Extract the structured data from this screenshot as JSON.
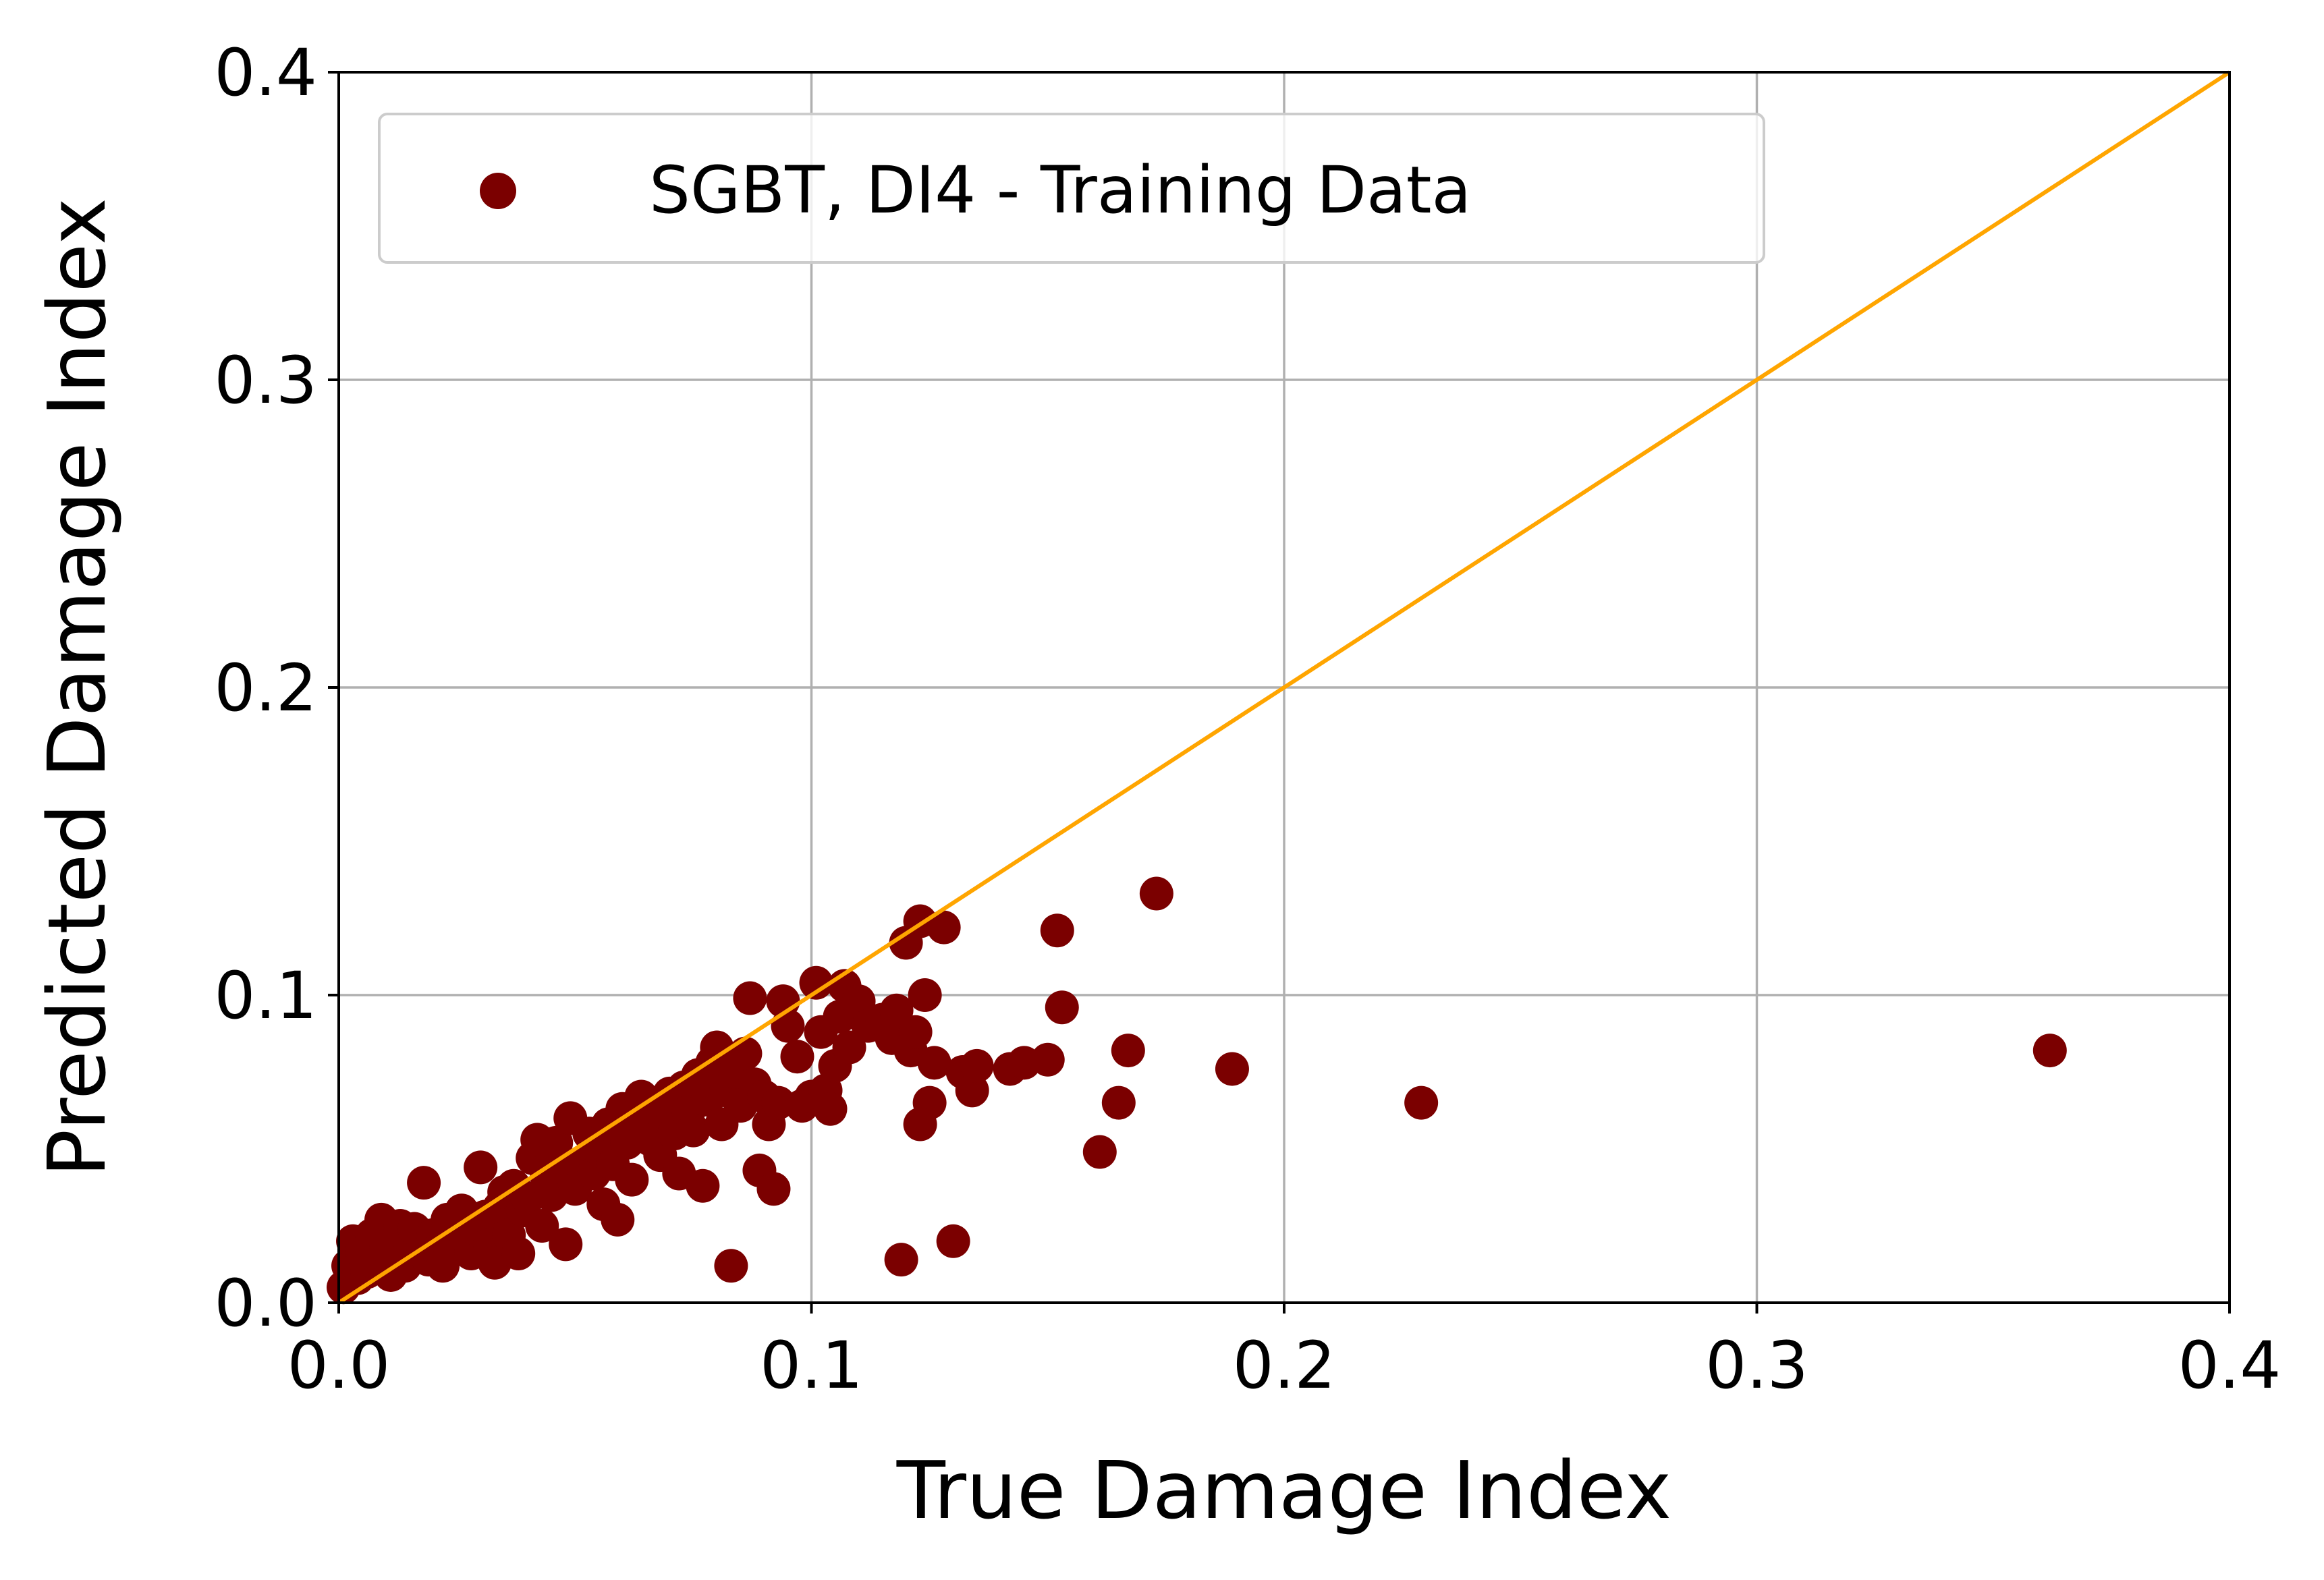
{
  "chart_data": {
    "type": "scatter",
    "xlabel": "True Damage Index",
    "ylabel": "Predicted Damage Index",
    "xlim": [
      0.0,
      0.4
    ],
    "ylim": [
      0.0,
      0.4
    ],
    "xticks": [
      "0.0",
      "0.1",
      "0.2",
      "0.3",
      "0.4"
    ],
    "yticks": [
      "0.0",
      "0.1",
      "0.2",
      "0.3",
      "0.4"
    ],
    "grid": true,
    "legend_position": "upper-left",
    "series": [
      {
        "name": "SGBT, DI4 - Training Data",
        "color": "#7b0000",
        "marker": "circle",
        "points": [
          [
            0.001,
            0.005
          ],
          [
            0.002,
            0.012
          ],
          [
            0.003,
            0.02
          ],
          [
            0.004,
            0.008
          ],
          [
            0.005,
            0.017
          ],
          [
            0.006,
            0.01
          ],
          [
            0.007,
            0.022
          ],
          [
            0.008,
            0.013
          ],
          [
            0.009,
            0.027
          ],
          [
            0.01,
            0.018
          ],
          [
            0.011,
            0.009
          ],
          [
            0.012,
            0.016
          ],
          [
            0.013,
            0.025
          ],
          [
            0.014,
            0.012
          ],
          [
            0.015,
            0.02
          ],
          [
            0.016,
            0.024
          ],
          [
            0.018,
            0.039
          ],
          [
            0.019,
            0.014
          ],
          [
            0.02,
            0.022
          ],
          [
            0.021,
            0.017
          ],
          [
            0.022,
            0.012
          ],
          [
            0.023,
            0.027
          ],
          [
            0.024,
            0.019
          ],
          [
            0.025,
            0.025
          ],
          [
            0.026,
            0.03
          ],
          [
            0.027,
            0.021
          ],
          [
            0.028,
            0.016
          ],
          [
            0.029,
            0.024
          ],
          [
            0.03,
            0.044
          ],
          [
            0.031,
            0.028
          ],
          [
            0.032,
            0.019
          ],
          [
            0.033,
            0.013
          ],
          [
            0.034,
            0.031
          ],
          [
            0.035,
            0.036
          ],
          [
            0.036,
            0.022
          ],
          [
            0.037,
            0.038
          ],
          [
            0.038,
            0.016
          ],
          [
            0.039,
            0.03
          ],
          [
            0.04,
            0.034
          ],
          [
            0.041,
            0.047
          ],
          [
            0.042,
            0.053
          ],
          [
            0.043,
            0.025
          ],
          [
            0.044,
            0.041
          ],
          [
            0.045,
            0.035
          ],
          [
            0.046,
            0.052
          ],
          [
            0.047,
            0.044
          ],
          [
            0.048,
            0.019
          ],
          [
            0.049,
            0.06
          ],
          [
            0.05,
            0.037
          ],
          [
            0.052,
            0.046
          ],
          [
            0.053,
            0.055
          ],
          [
            0.054,
            0.042
          ],
          [
            0.055,
            0.05
          ],
          [
            0.056,
            0.032
          ],
          [
            0.057,
            0.058
          ],
          [
            0.058,
            0.045
          ],
          [
            0.059,
            0.027
          ],
          [
            0.06,
            0.063
          ],
          [
            0.061,
            0.052
          ],
          [
            0.062,
            0.04
          ],
          [
            0.063,
            0.061
          ],
          [
            0.064,
            0.067
          ],
          [
            0.065,
            0.057
          ],
          [
            0.066,
            0.053
          ],
          [
            0.067,
            0.064
          ],
          [
            0.068,
            0.048
          ],
          [
            0.069,
            0.06
          ],
          [
            0.07,
            0.068
          ],
          [
            0.071,
            0.055
          ],
          [
            0.072,
            0.042
          ],
          [
            0.073,
            0.07
          ],
          [
            0.074,
            0.062
          ],
          [
            0.075,
            0.056
          ],
          [
            0.076,
            0.074
          ],
          [
            0.077,
            0.038
          ],
          [
            0.078,
            0.066
          ],
          [
            0.079,
            0.078
          ],
          [
            0.08,
            0.083
          ],
          [
            0.081,
            0.058
          ],
          [
            0.082,
            0.069
          ],
          [
            0.083,
            0.012
          ],
          [
            0.084,
            0.075
          ],
          [
            0.085,
            0.064
          ],
          [
            0.086,
            0.081
          ],
          [
            0.087,
            0.099
          ],
          [
            0.088,
            0.071
          ],
          [
            0.089,
            0.043
          ],
          [
            0.09,
            0.067
          ],
          [
            0.091,
            0.058
          ],
          [
            0.092,
            0.037
          ],
          [
            0.093,
            0.065
          ],
          [
            0.094,
            0.098
          ],
          [
            0.095,
            0.09
          ],
          [
            0.097,
            0.08
          ],
          [
            0.098,
            0.064
          ],
          [
            0.1,
            0.067
          ],
          [
            0.101,
            0.104
          ],
          [
            0.102,
            0.088
          ],
          [
            0.103,
            0.069
          ],
          [
            0.104,
            0.063
          ],
          [
            0.105,
            0.077
          ],
          [
            0.106,
            0.093
          ],
          [
            0.107,
            0.103
          ],
          [
            0.108,
            0.083
          ],
          [
            0.11,
            0.098
          ],
          [
            0.112,
            0.09
          ],
          [
            0.115,
            0.092
          ],
          [
            0.117,
            0.086
          ],
          [
            0.118,
            0.095
          ],
          [
            0.119,
            0.014
          ],
          [
            0.12,
            0.117
          ],
          [
            0.121,
            0.082
          ],
          [
            0.122,
            0.088
          ],
          [
            0.123,
            0.124
          ],
          [
            0.124,
            0.1
          ],
          [
            0.125,
            0.065
          ],
          [
            0.126,
            0.078
          ],
          [
            0.123,
            0.058
          ],
          [
            0.128,
            0.122
          ],
          [
            0.13,
            0.02
          ],
          [
            0.132,
            0.075
          ],
          [
            0.134,
            0.069
          ],
          [
            0.135,
            0.077
          ],
          [
            0.142,
            0.076
          ],
          [
            0.145,
            0.078
          ],
          [
            0.15,
            0.079
          ],
          [
            0.152,
            0.121
          ],
          [
            0.153,
            0.096
          ],
          [
            0.161,
            0.049
          ],
          [
            0.165,
            0.065
          ],
          [
            0.167,
            0.082
          ],
          [
            0.173,
            0.133
          ],
          [
            0.189,
            0.076
          ],
          [
            0.229,
            0.065
          ],
          [
            0.362,
            0.082
          ]
        ]
      },
      {
        "name": "",
        "type": "line",
        "color": "#ffa500",
        "x": [
          0.0,
          0.4
        ],
        "y": [
          0.0,
          0.4
        ]
      }
    ]
  }
}
